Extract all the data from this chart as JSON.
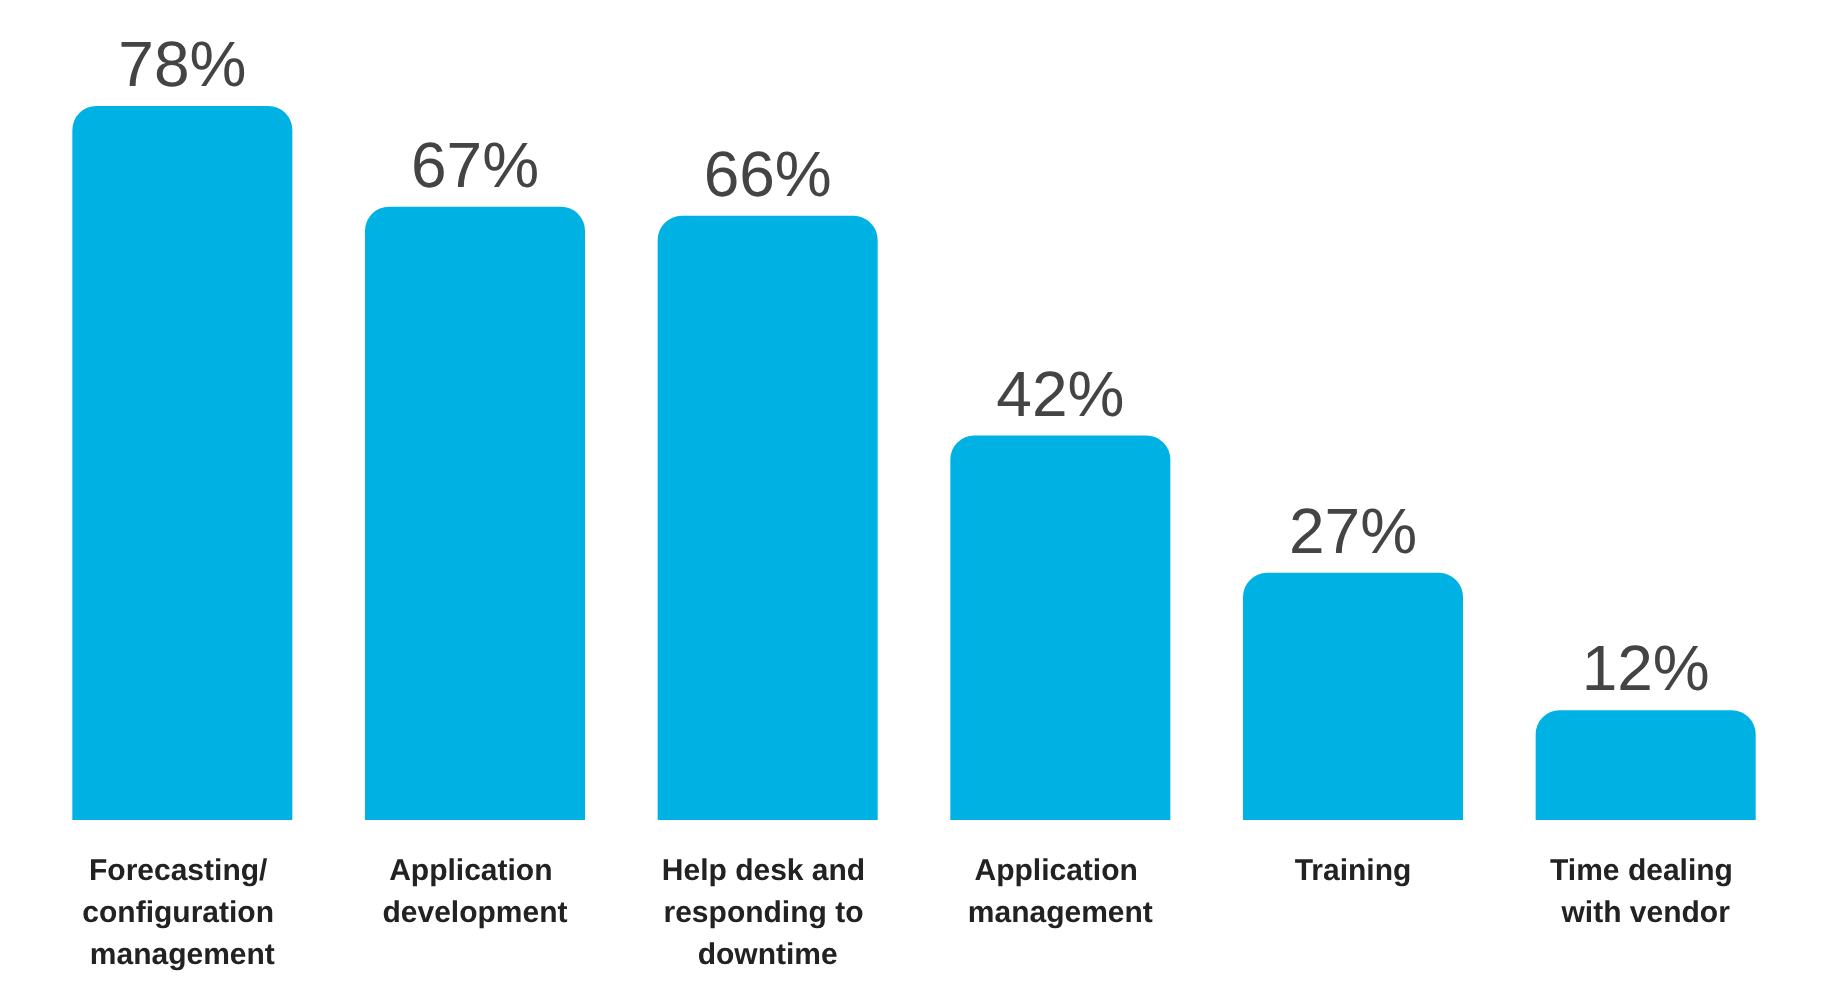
{
  "chart_data": {
    "type": "bar",
    "categories": [
      "Forecasting/ configuration management",
      "Application development",
      "Help desk and responding to downtime",
      "Application management",
      "Training",
      "Time dealing with vendor"
    ],
    "values": [
      78,
      67,
      66,
      42,
      27,
      12
    ],
    "value_labels": [
      "78%",
      "67%",
      "66%",
      "42%",
      "27%",
      "12%"
    ],
    "color": "#00b2e3",
    "grid": false
  }
}
